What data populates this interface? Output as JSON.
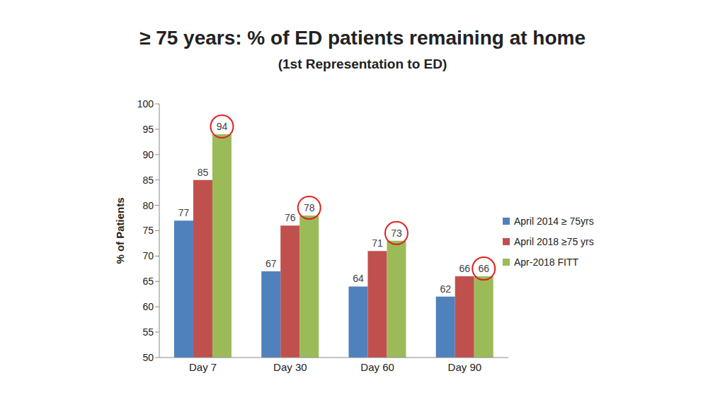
{
  "chart_data": {
    "type": "bar",
    "title": "≥ 75 years: % of ED patients remaining at home",
    "subtitle": "(1st Representation to ED)",
    "y_label": "% of Patients",
    "categories": [
      "Day 7",
      "Day 30",
      "Day 60",
      "Day 90"
    ],
    "series": [
      {
        "name": "April 2014 ≥ 75yrs",
        "color": "#4f81bd",
        "values": [
          77,
          67,
          64,
          62
        ]
      },
      {
        "name": "April 2018 ≥75 yrs",
        "color": "#c0504d",
        "values": [
          85,
          76,
          71,
          66
        ]
      },
      {
        "name": "Apr-2018 FITT",
        "color": "#9bbb59",
        "values": [
          94,
          78,
          73,
          66
        ]
      }
    ],
    "ylim": [
      50,
      100
    ],
    "yticks": [
      50,
      55,
      60,
      65,
      70,
      75,
      80,
      85,
      90,
      95,
      100
    ],
    "grid": false,
    "legend": "right",
    "data_labels": true
  }
}
